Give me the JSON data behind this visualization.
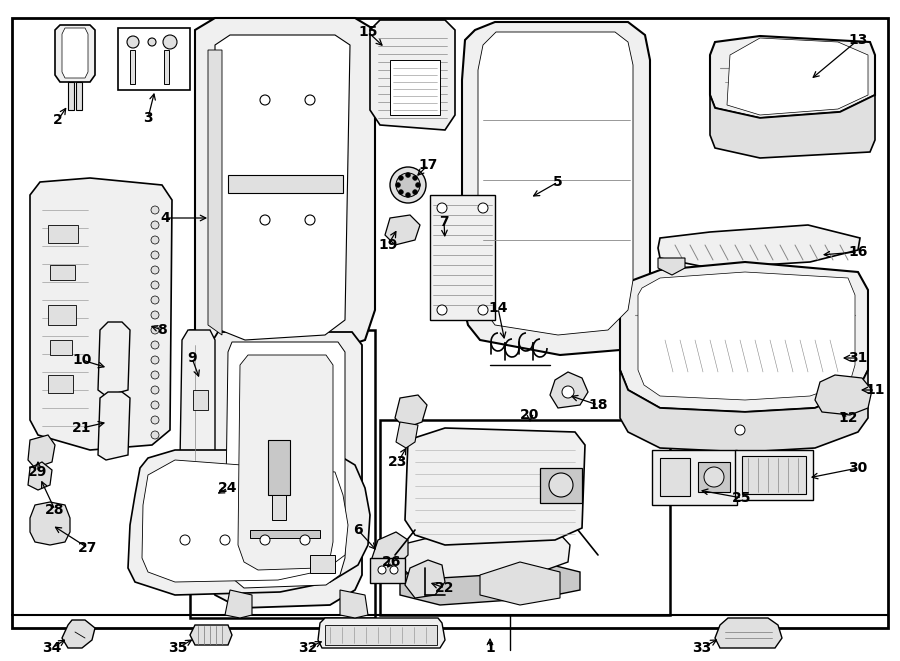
{
  "bg_color": "#ffffff",
  "border_color": "#000000",
  "fig_w": 9.0,
  "fig_h": 6.61,
  "dpi": 100,
  "lw_main": 1.5,
  "lw_detail": 0.8,
  "lw_thin": 0.4,
  "fc_part": "#f0f0f0",
  "fc_white": "#ffffff",
  "fc_light": "#e8e8e8",
  "label_fs": 9,
  "label_bold_fs": 10
}
